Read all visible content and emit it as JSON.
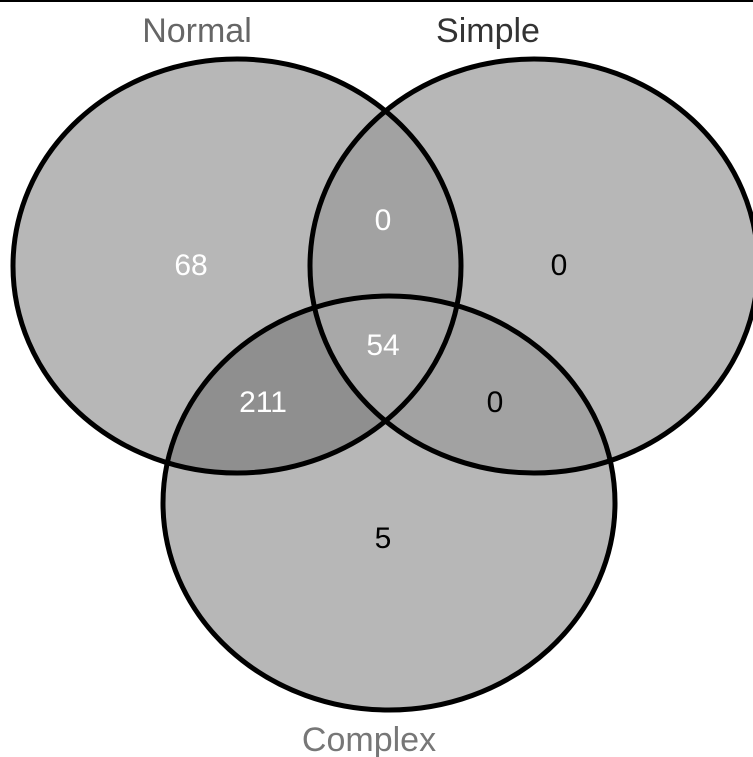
{
  "sets": [
    {
      "id": "normal",
      "label": "Normal",
      "label_color": "#666666"
    },
    {
      "id": "simple",
      "label": "Simple",
      "label_color": "#333333"
    },
    {
      "id": "complex",
      "label": "Complex",
      "label_color": "#777777"
    }
  ],
  "regions": {
    "normal_only": {
      "value": "68",
      "text_color": "#ffffff"
    },
    "simple_only": {
      "value": "0",
      "text_color": "#000000"
    },
    "complex_only": {
      "value": "5",
      "text_color": "#000000"
    },
    "normal_simple": {
      "value": "0",
      "text_color": "#ffffff"
    },
    "normal_complex": {
      "value": "211",
      "text_color": "#ffffff"
    },
    "simple_complex": {
      "value": "0",
      "text_color": "#000000"
    },
    "normal_simple_complex": {
      "value": "54",
      "text_color": "#ffffff"
    }
  },
  "colors": {
    "fill_single": "#b7b7b7",
    "fill_normal_simple": "#a2a2a2",
    "fill_normal_complex": "#8f8f8f",
    "fill_simple_complex": "#a2a2a2",
    "fill_all": "#a8a8a8",
    "stroke": "#000000"
  }
}
